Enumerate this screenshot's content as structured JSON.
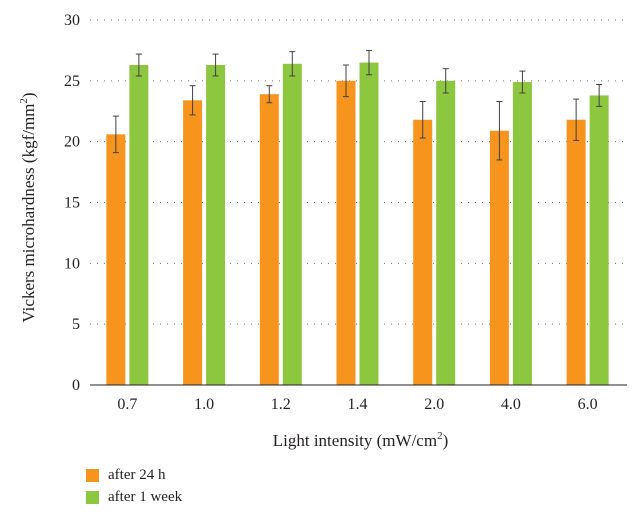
{
  "chart_data": {
    "type": "bar",
    "categories": [
      "0.7",
      "1.0",
      "1.2",
      "1.4",
      "2.0",
      "4.0",
      "6.0"
    ],
    "series": [
      {
        "name": "after 24 h",
        "color": "#f7941d",
        "values": [
          20.6,
          23.4,
          23.9,
          25.0,
          21.8,
          20.9,
          21.8
        ],
        "errors": [
          1.5,
          1.2,
          0.7,
          1.3,
          1.5,
          2.4,
          1.7
        ]
      },
      {
        "name": "after 1 week",
        "color": "#8dc63f",
        "values": [
          26.3,
          26.3,
          26.4,
          26.5,
          25.0,
          24.9,
          23.8
        ],
        "errors": [
          0.9,
          0.9,
          1.0,
          1.0,
          1.0,
          0.9,
          0.9
        ]
      }
    ],
    "ylim": [
      0,
      30
    ],
    "yticks": [
      "0",
      "5",
      "10",
      "15",
      "20",
      "25",
      "30"
    ],
    "ylabel": "Vickers microhardness (kgf/mm",
    "ylabel_sup": "2",
    "ylabel_tail": ")",
    "xlabel": "Light intensity (mW/cm",
    "xlabel_sup": "2",
    "xlabel_tail": ")",
    "grid": "dotted-horizontal",
    "legend_position": "bottom-left"
  }
}
